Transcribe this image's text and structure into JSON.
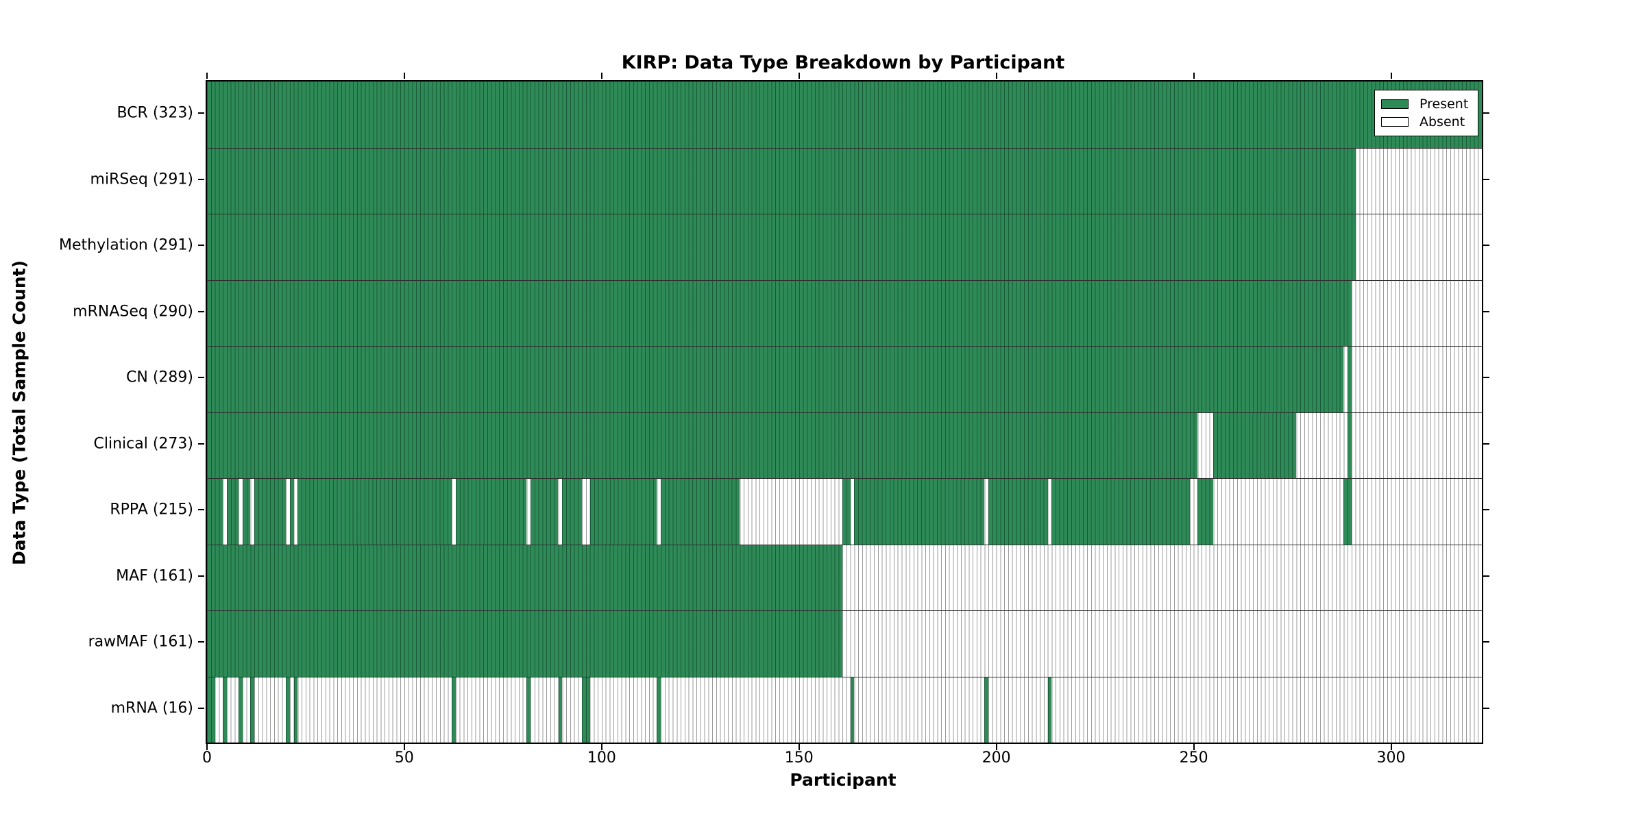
{
  "title": "KIRP: Data Type Breakdown by Participant",
  "x_axis": {
    "label": "Participant",
    "ticks": [
      "0",
      "50",
      "100",
      "150",
      "200",
      "250",
      "300"
    ]
  },
  "y_axis": {
    "label": "Data Type (Total Sample Count)"
  },
  "legend": {
    "present_label": "Present",
    "absent_label": "Absent"
  },
  "colors": {
    "present": "#2e8b57",
    "absent": "#ffffff",
    "absent_stripe": "#9b9b9b",
    "border": "#000000"
  },
  "chart_data": {
    "type": "heatmap",
    "title": "KIRP: Data Type Breakdown by Participant",
    "xlabel": "Participant",
    "ylabel": "Data Type (Total Sample Count)",
    "n_participants": 323,
    "x_ticks": [
      0,
      50,
      100,
      150,
      200,
      250,
      300
    ],
    "xlim": [
      0,
      323
    ],
    "grid": false,
    "legend_position": "upper right",
    "legend_entries": [
      "Present",
      "Absent"
    ],
    "cell_states": [
      "present",
      "absent"
    ],
    "rows": [
      {
        "label": "BCR (323)",
        "name": "BCR",
        "total_samples": 323,
        "present_ranges": [
          [
            0,
            322
          ]
        ]
      },
      {
        "label": "miRSeq (291)",
        "name": "miRSeq",
        "total_samples": 291,
        "present_ranges": [
          [
            0,
            290
          ]
        ]
      },
      {
        "label": "Methylation (291)",
        "name": "Methylation",
        "total_samples": 291,
        "present_ranges": [
          [
            0,
            290
          ]
        ]
      },
      {
        "label": "mRNASeq (290)",
        "name": "mRNASeq",
        "total_samples": 290,
        "present_ranges": [
          [
            0,
            289
          ]
        ]
      },
      {
        "label": "CN (289)",
        "name": "CN",
        "total_samples": 289,
        "present_ranges": [
          [
            0,
            287
          ],
          [
            289,
            289
          ]
        ]
      },
      {
        "label": "Clinical (273)",
        "name": "Clinical",
        "total_samples": 273,
        "present_ranges": [
          [
            0,
            250
          ],
          [
            255,
            275
          ],
          [
            289,
            289
          ]
        ]
      },
      {
        "label": "RPPA (215)",
        "name": "RPPA",
        "total_samples": 215,
        "present_ranges": [
          [
            0,
            3
          ],
          [
            5,
            7
          ],
          [
            9,
            10
          ],
          [
            12,
            19
          ],
          [
            21,
            21
          ],
          [
            23,
            61
          ],
          [
            63,
            80
          ],
          [
            82,
            88
          ],
          [
            90,
            94
          ],
          [
            97,
            113
          ],
          [
            115,
            134
          ],
          [
            161,
            162
          ],
          [
            164,
            196
          ],
          [
            198,
            212
          ],
          [
            214,
            248
          ],
          [
            251,
            254
          ],
          [
            288,
            289
          ]
        ]
      },
      {
        "label": "MAF (161)",
        "name": "MAF",
        "total_samples": 161,
        "present_ranges": [
          [
            0,
            160
          ]
        ]
      },
      {
        "label": "rawMAF (161)",
        "name": "rawMAF",
        "total_samples": 161,
        "present_ranges": [
          [
            0,
            160
          ]
        ]
      },
      {
        "label": "mRNA (16)",
        "name": "mRNA",
        "total_samples": 16,
        "present_ranges": [
          [
            0,
            1
          ],
          [
            4,
            4
          ],
          [
            8,
            8
          ],
          [
            11,
            11
          ],
          [
            20,
            20
          ],
          [
            22,
            22
          ],
          [
            62,
            62
          ],
          [
            81,
            81
          ],
          [
            89,
            89
          ],
          [
            95,
            96
          ],
          [
            114,
            114
          ],
          [
            163,
            163
          ],
          [
            197,
            197
          ],
          [
            213,
            213
          ]
        ]
      }
    ]
  }
}
